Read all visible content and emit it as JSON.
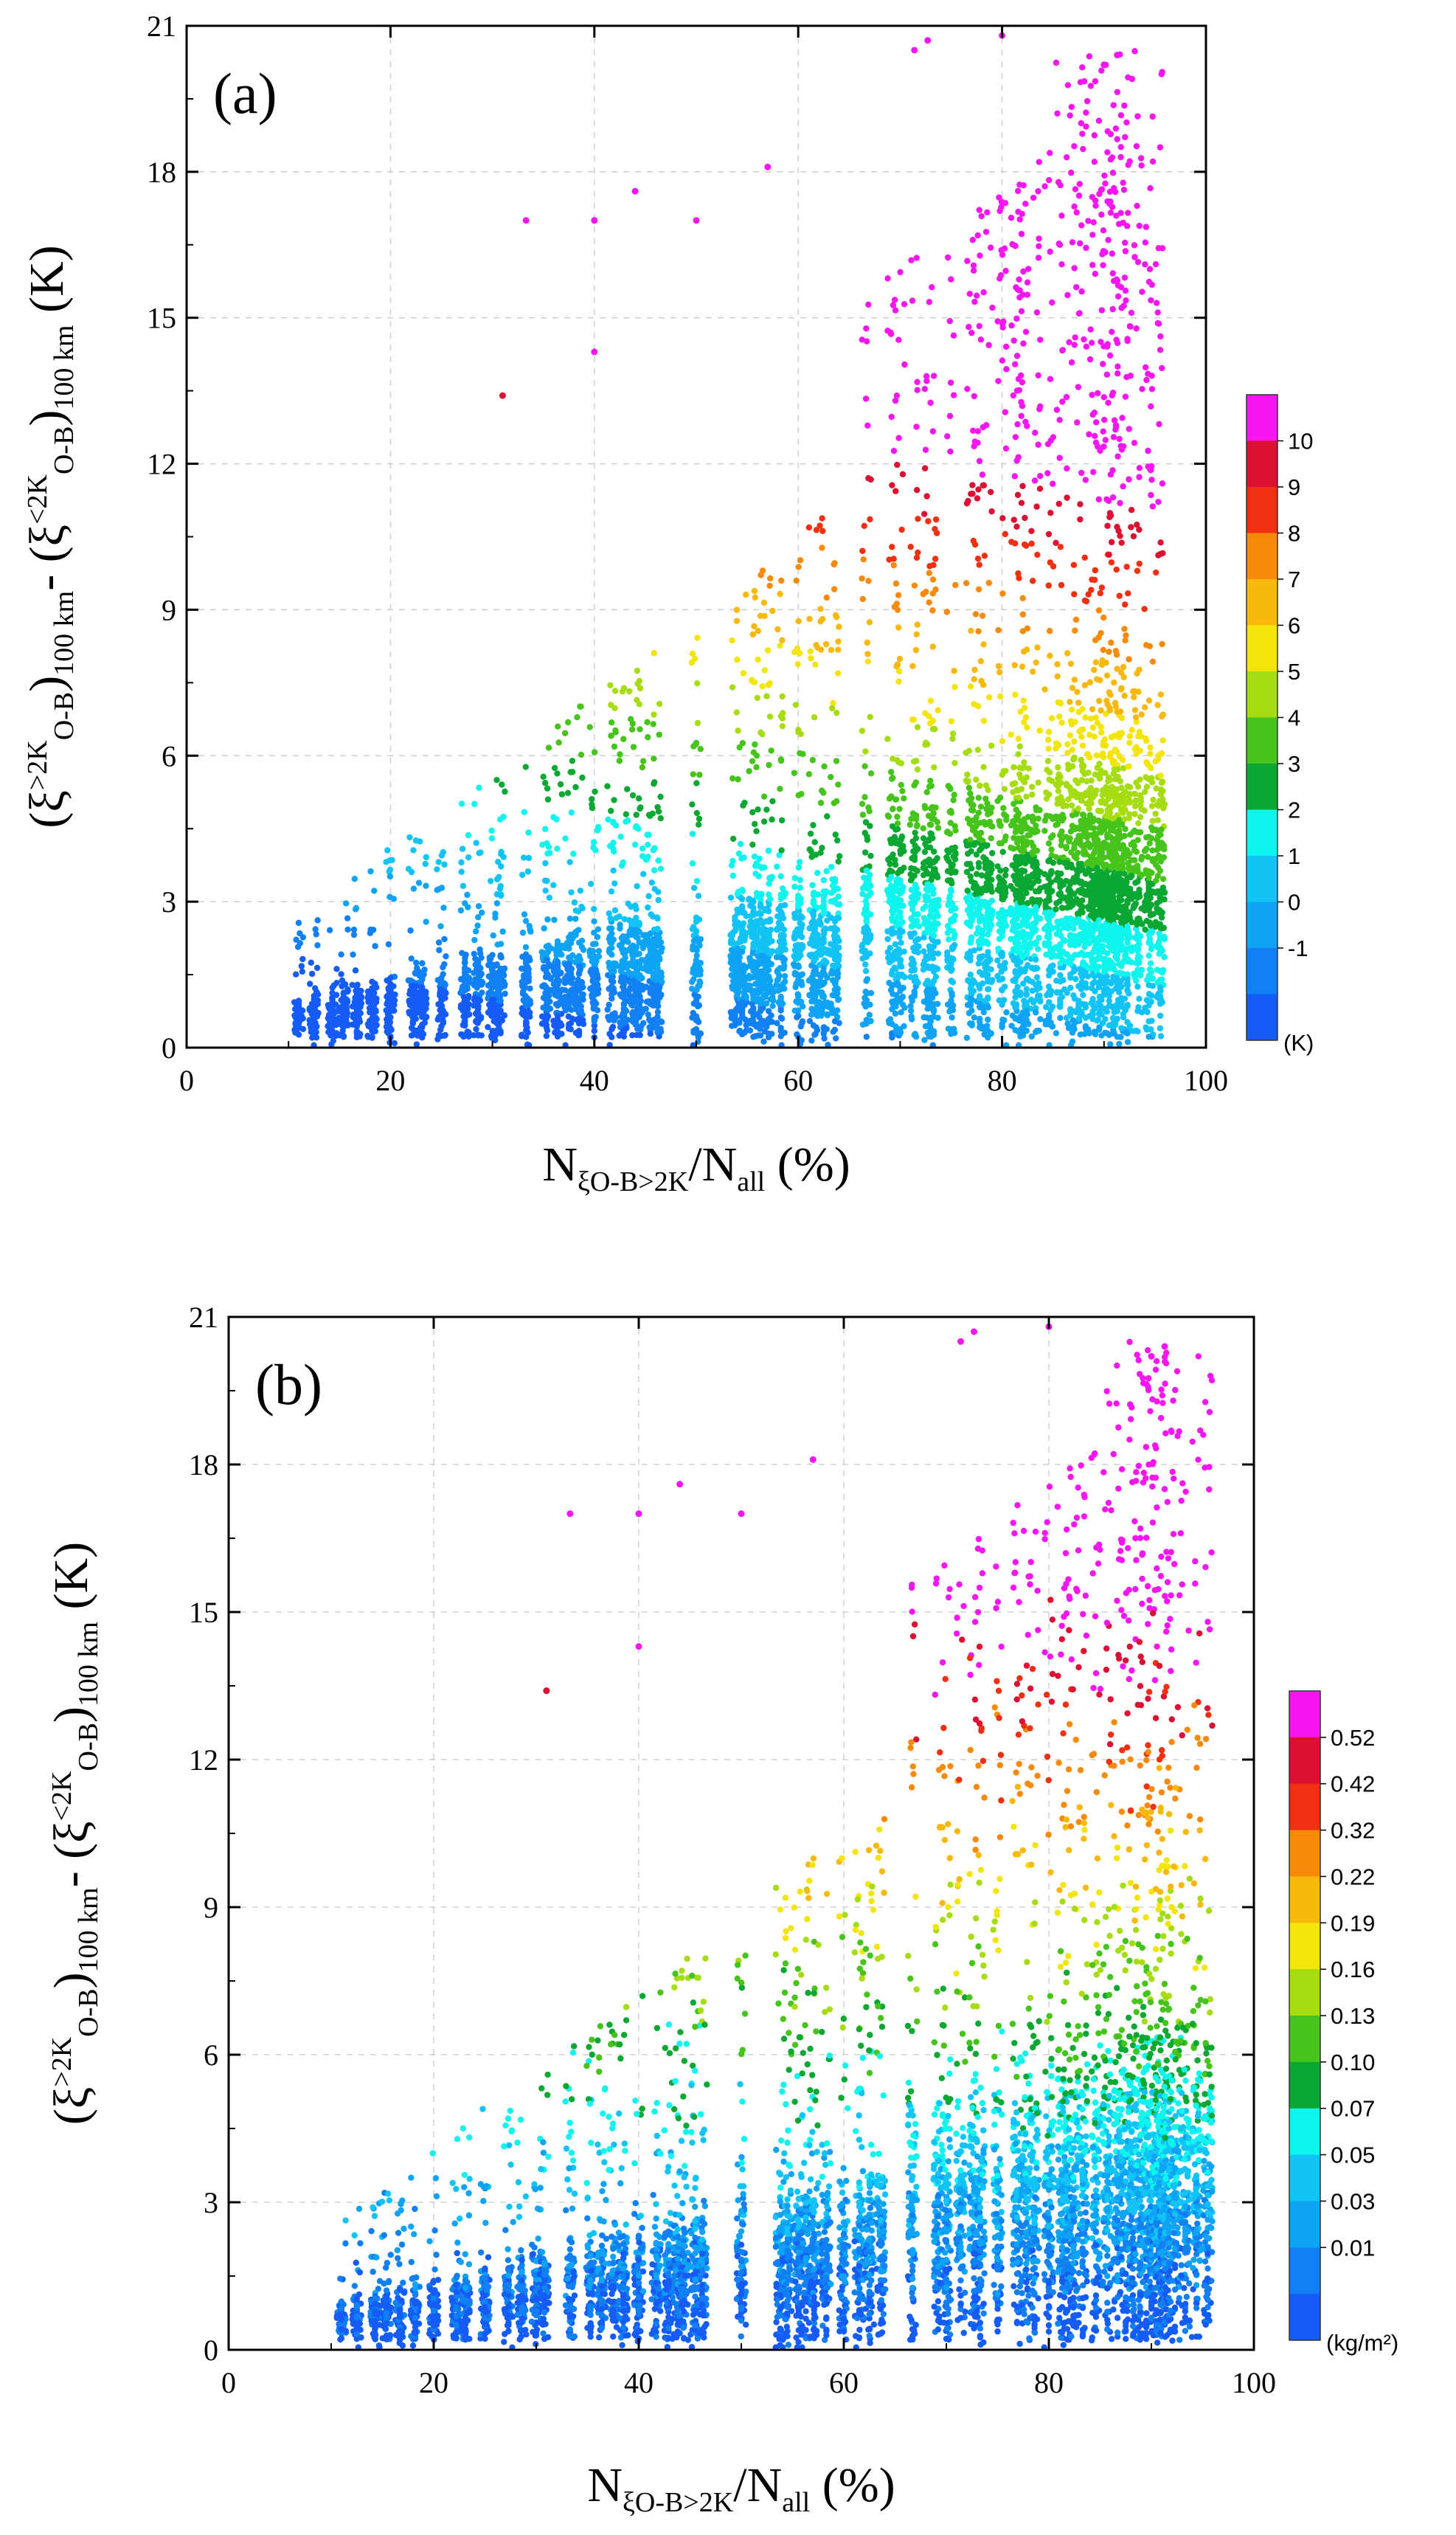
{
  "chart_data": [
    {
      "type": "scatter",
      "panel_label": "(a)",
      "ylim": [
        0,
        21
      ],
      "xlim": [
        0,
        100
      ],
      "x_ticks": [
        "0",
        "20",
        "40",
        "60",
        "80",
        "100"
      ],
      "y_ticks": [
        "0",
        "3",
        "6",
        "9",
        "12",
        "15",
        "18",
        "21"
      ],
      "xlabel": {
        "main": "N",
        "sub": "ξO-B>2K",
        "tail": "/N",
        "sub2": "all",
        "unit": " (%)"
      },
      "ylabel": {
        "text": "(ξ̄>2K O-B)100 km - (ξ̄<2K O-B)100 km (K)",
        "bar1": "ξ",
        "sup1": ">2K",
        "sub1": "O-B",
        "sub1b": "100 km",
        "minus": "- (",
        "bar2": "ξ",
        "sup2": "<2K",
        "sub2": "O-B",
        "sub2b": "100 km",
        "unit": "(K)"
      },
      "colorbar": {
        "labels": [
          "10",
          "9",
          "8",
          "7",
          "6",
          "5",
          "4",
          "3",
          "2",
          "1",
          "0",
          "-1"
        ],
        "unit": "(K)",
        "colors": [
          "#f516f0",
          "#db1033",
          "#f03010",
          "#f88a0a",
          "#f8b80c",
          "#f3e40a",
          "#a6dd12",
          "#46c41c",
          "#0aa733",
          "#10f4ee",
          "#12c4f5",
          "#0fa3f5",
          "#1180f2",
          "#145cf5"
        ]
      },
      "legend_position": "right",
      "grid": true,
      "x_columns": [
        11,
        12.5,
        14.3,
        15.4,
        16.7,
        18.2,
        20,
        22.2,
        23.1,
        25,
        27.3,
        28.6,
        30,
        30.8,
        33.3,
        35.3,
        36.4,
        37.5,
        38.5,
        40,
        41.7,
        42.9,
        43.8,
        44.4,
        45.5,
        46.2,
        50,
        53.8,
        54.5,
        55.6,
        56.3,
        57.1,
        58.3,
        60,
        61.5,
        62.5,
        63.6,
        66.7,
        69.2,
        70,
        71.4,
        72.7,
        73.3,
        75,
        76.9,
        77.8,
        78.6,
        80,
        81.3,
        81.8,
        82.4,
        83.3,
        84.6,
        85.7,
        86.7,
        87.5,
        88.2,
        88.9,
        89.5,
        90,
        90.5,
        90.9,
        91.3,
        91.7,
        92.3,
        93.3,
        94.4,
        95.5
      ],
      "notable_points": [
        {
          "x": 33.3,
          "y": 17.0
        },
        {
          "x": 40,
          "y": 17.0
        },
        {
          "x": 44,
          "y": 17.6
        },
        {
          "x": 50,
          "y": 17.0
        },
        {
          "x": 57,
          "y": 18.1
        },
        {
          "x": 71.4,
          "y": 20.5
        },
        {
          "x": 72.7,
          "y": 20.7
        },
        {
          "x": 80,
          "y": 20.8
        },
        {
          "x": 90,
          "y": 20.2
        },
        {
          "x": 91.3,
          "y": 20.4
        },
        {
          "x": 31,
          "y": 13.4
        },
        {
          "x": 40,
          "y": 14.3
        }
      ]
    },
    {
      "type": "scatter",
      "panel_label": "(b)",
      "ylim": [
        0,
        21
      ],
      "xlim": [
        0,
        100
      ],
      "x_ticks": [
        "0",
        "20",
        "40",
        "60",
        "80",
        "100"
      ],
      "y_ticks": [
        "0",
        "3",
        "6",
        "9",
        "12",
        "15",
        "18",
        "21"
      ],
      "xlabel": {
        "main": "N",
        "sub": "ξO-B>2K",
        "tail": "/N",
        "sub2": "all",
        "unit": " (%)"
      },
      "ylabel": {
        "text": "(ξ̄>2K O-B)100 km - (ξ̄<2K O-B)100 km (K)",
        "bar1": "ξ",
        "sup1": ">2K",
        "sub1": "O-B",
        "sub1b": "100 km",
        "minus": "- (",
        "bar2": "ξ",
        "sup2": "<2K",
        "sub2": "O-B",
        "sub2b": "100 km",
        "unit": "(K)"
      },
      "colorbar": {
        "labels": [
          "0.52",
          "0.42",
          "0.32",
          "0.22",
          "0.19",
          "0.16",
          "0.13",
          "0.10",
          "0.07",
          "0.05",
          "0.03",
          "0.01"
        ],
        "unit": "(kg/m²)",
        "colors": [
          "#f516f0",
          "#db1033",
          "#f03010",
          "#f88a0a",
          "#f8b80c",
          "#f3e40a",
          "#a6dd12",
          "#46c41c",
          "#0aa733",
          "#10f4ee",
          "#12c4f5",
          "#0fa3f5",
          "#1180f2",
          "#145cf5"
        ]
      },
      "legend_position": "right",
      "grid": true,
      "x_columns": [
        11,
        12.5,
        14.3,
        15.4,
        16.7,
        18.2,
        20,
        22.2,
        23.1,
        25,
        27.3,
        28.6,
        30,
        30.8,
        33.3,
        35.3,
        36.4,
        37.5,
        38.5,
        40,
        41.7,
        42.9,
        43.8,
        44.4,
        45.5,
        46.2,
        50,
        53.8,
        54.5,
        55.6,
        56.3,
        57.1,
        58.3,
        60,
        61.5,
        62.5,
        63.6,
        66.7,
        69.2,
        70,
        71.4,
        72.7,
        73.3,
        75,
        76.9,
        77.8,
        78.6,
        80,
        81.3,
        81.8,
        82.4,
        83.3,
        84.6,
        85.7,
        86.7,
        87.5,
        88.2,
        88.9,
        89.5,
        90,
        90.5,
        90.9,
        91.3,
        91.7,
        92.3,
        93.3,
        94.4,
        95.5
      ],
      "notable_points": [
        {
          "x": 33.3,
          "y": 17.0
        },
        {
          "x": 40,
          "y": 17.0
        },
        {
          "x": 44,
          "y": 17.6
        },
        {
          "x": 50,
          "y": 17.0
        },
        {
          "x": 57,
          "y": 18.1
        },
        {
          "x": 71.4,
          "y": 20.5
        },
        {
          "x": 72.7,
          "y": 20.7
        },
        {
          "x": 80,
          "y": 20.8
        },
        {
          "x": 90,
          "y": 20.2
        },
        {
          "x": 91.3,
          "y": 20.4
        },
        {
          "x": 31,
          "y": 13.4
        },
        {
          "x": 40,
          "y": 14.3
        }
      ]
    }
  ]
}
